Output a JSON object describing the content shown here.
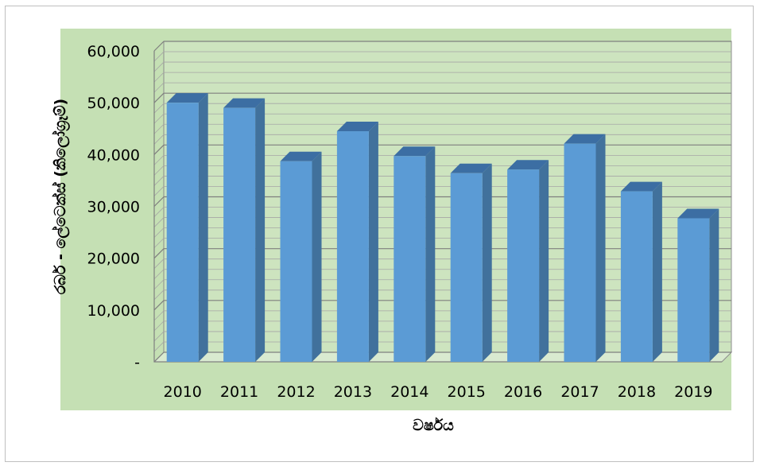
{
  "chart_data": {
    "type": "bar",
    "style": "3d-column",
    "title": "",
    "xlabel": "වර්ෂය",
    "ylabel": "රබර් - ලේටෙක්ස් (කිලෝග්‍රෑම්)",
    "categories": [
      "2010",
      "2011",
      "2012",
      "2013",
      "2014",
      "2015",
      "2016",
      "2017",
      "2018",
      "2019"
    ],
    "series": [
      {
        "values": [
          50000,
          49000,
          38700,
          44500,
          39700,
          36400,
          37100,
          42100,
          32900,
          27700
        ]
      }
    ],
    "ylim": [
      0,
      60000
    ],
    "yticks": [
      0,
      10000,
      20000,
      30000,
      40000,
      50000,
      60000
    ],
    "ytick_labels": [
      "-",
      "10,000",
      "20,000",
      "30,000",
      "40,000",
      "50,000",
      "60,000"
    ],
    "grid": true,
    "legend": "none",
    "colors": {
      "bar_front": "#5b9bd5",
      "bar_side": "#41719c",
      "bar_top": "#3c6ea3",
      "plot_background": "#c5e0b4",
      "wall": "#cde4bf",
      "gridline": "#a6a6a6"
    }
  }
}
